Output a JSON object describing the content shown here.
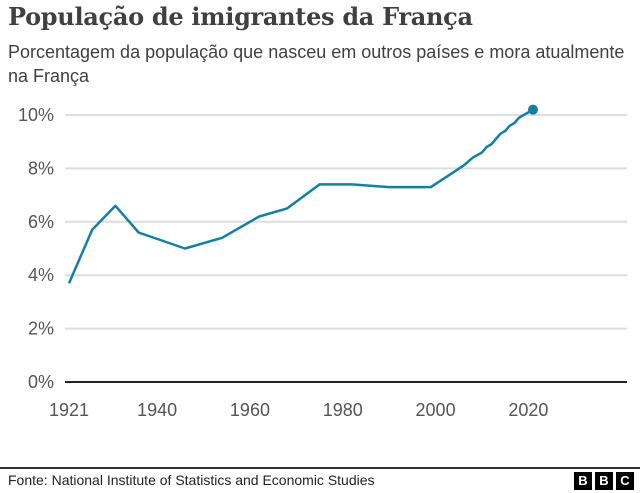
{
  "header": {
    "title": "População de imigrantes da França",
    "subtitle": "Porcentagem da população que nasceu em outros países e mora atualmente na França"
  },
  "footer": {
    "source": "Fonte: National Institute of Statistics and Economic Studies",
    "logo_letters": [
      "B",
      "B",
      "C"
    ]
  },
  "colors": {
    "line": "#1380A1",
    "grid": "#dddddd",
    "baseline": "#222222"
  },
  "chart_data": {
    "type": "line",
    "title": "População de imigrantes da França",
    "subtitle": "Porcentagem da população que nasceu em outros países e mora atualmente na França",
    "xlabel": "",
    "ylabel": "",
    "xlim": [
      1921,
      2040
    ],
    "ylim": [
      0,
      10
    ],
    "x_ticks": [
      1921,
      1940,
      1960,
      1980,
      2000,
      2020
    ],
    "x_tick_labels": [
      "1921",
      "1940",
      "1960",
      "1980",
      "2000",
      "2020"
    ],
    "y_ticks": [
      0,
      2,
      4,
      6,
      8,
      10
    ],
    "y_tick_labels": [
      "0%",
      "2%",
      "4%",
      "6%",
      "8%",
      "10%"
    ],
    "grid": "horizontal",
    "end_marker": true,
    "x": [
      1921,
      1926,
      1931,
      1936,
      1946,
      1954,
      1962,
      1968,
      1975,
      1982,
      1990,
      1999,
      2006,
      2008,
      2010,
      2011,
      2012,
      2013,
      2014,
      2015,
      2016,
      2017,
      2018,
      2019,
      2020,
      2021
    ],
    "y": [
      3.7,
      5.7,
      6.6,
      5.6,
      5.0,
      5.4,
      6.2,
      6.5,
      7.4,
      7.4,
      7.3,
      7.3,
      8.1,
      8.4,
      8.6,
      8.8,
      8.9,
      9.1,
      9.3,
      9.4,
      9.6,
      9.7,
      9.9,
      10.0,
      10.1,
      10.2
    ]
  }
}
